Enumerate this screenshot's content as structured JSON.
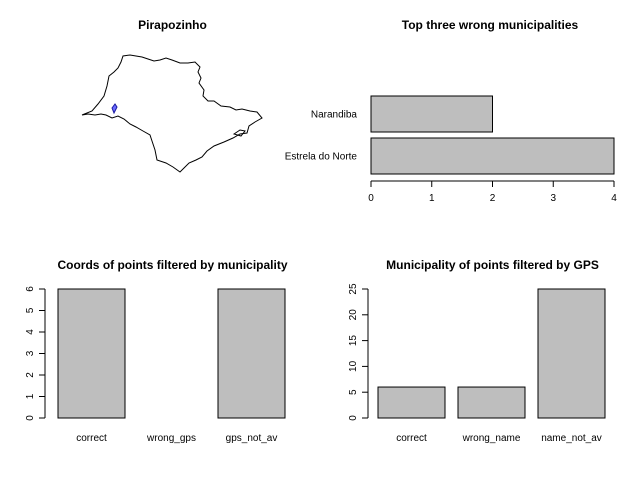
{
  "map_panel": {
    "title": "Pirapozinho"
  },
  "chart_data": [
    {
      "type": "bar",
      "orientation": "horizontal",
      "title": "Top three wrong municipalities",
      "categories": [
        "Estrela do Norte",
        "Narandiba"
      ],
      "values": [
        4,
        2
      ],
      "xlim": [
        0,
        4
      ],
      "ticks": [
        "0",
        "1",
        "2",
        "3",
        "4"
      ],
      "bar_color": "#bebebe",
      "grid": false
    },
    {
      "type": "bar",
      "title": "Coords of points filtered by municipality",
      "categories": [
        "correct",
        "wrong_gps",
        "gps_not_av"
      ],
      "values": [
        6,
        0,
        6
      ],
      "ylim": [
        0,
        6
      ],
      "ticks": [
        "0",
        "1",
        "2",
        "3",
        "4",
        "5",
        "6"
      ],
      "bar_color": "#bebebe",
      "grid": false
    },
    {
      "type": "bar",
      "title": "Municipality of points filtered by GPS",
      "categories": [
        "correct",
        "wrong_name",
        "name_not_av"
      ],
      "values": [
        6,
        6,
        25
      ],
      "ylim": [
        0,
        25
      ],
      "ticks": [
        "0",
        "5",
        "10",
        "15",
        "20",
        "25"
      ],
      "bar_color": "#bebebe",
      "grid": false
    }
  ]
}
